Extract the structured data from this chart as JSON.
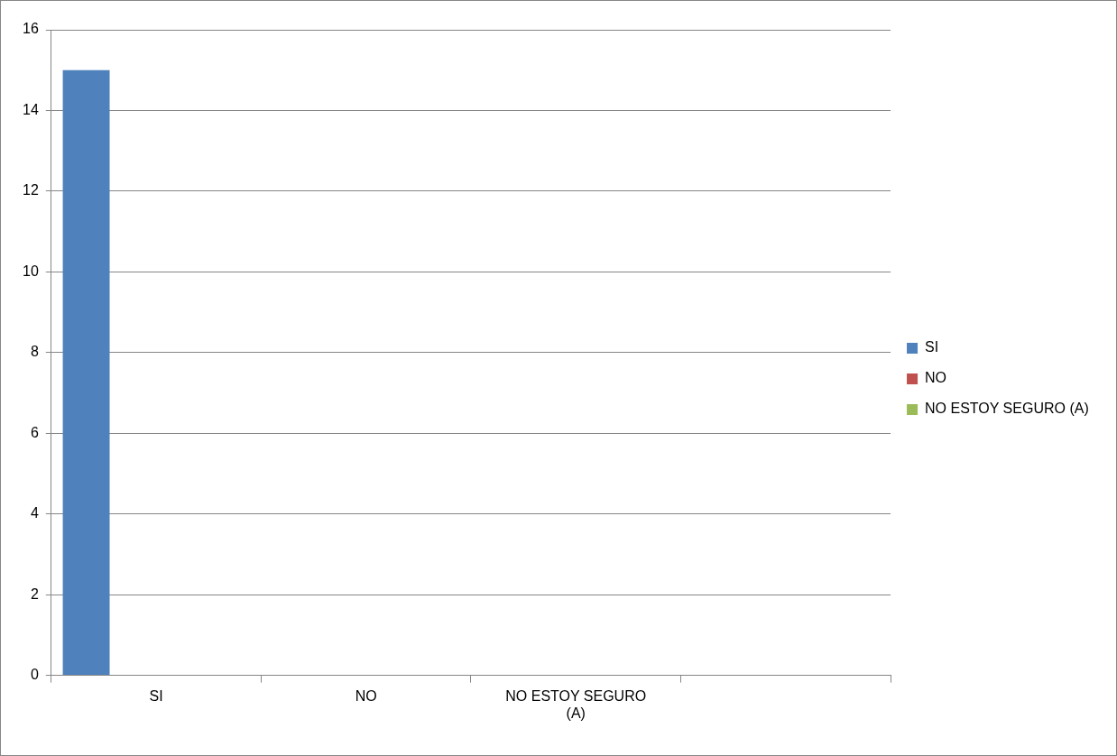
{
  "chart_data": {
    "type": "bar",
    "categories": [
      "SI",
      "NO",
      "NO ESTOY SEGURO (A)",
      null
    ],
    "series": [
      {
        "name": "SI",
        "color": "#4f81bd",
        "values": [
          15,
          null,
          null,
          null
        ]
      },
      {
        "name": "NO",
        "color": "#c0504d",
        "values": [
          0,
          null,
          null,
          null
        ]
      },
      {
        "name": "NO ESTOY SEGURO (A)",
        "color": "#9bbb59",
        "values": [
          0,
          null,
          null,
          null
        ]
      }
    ],
    "ylim": [
      0,
      16
    ],
    "yticks": [
      0,
      2,
      4,
      6,
      8,
      10,
      12,
      14,
      16
    ],
    "grid": "y",
    "legend": "right"
  }
}
